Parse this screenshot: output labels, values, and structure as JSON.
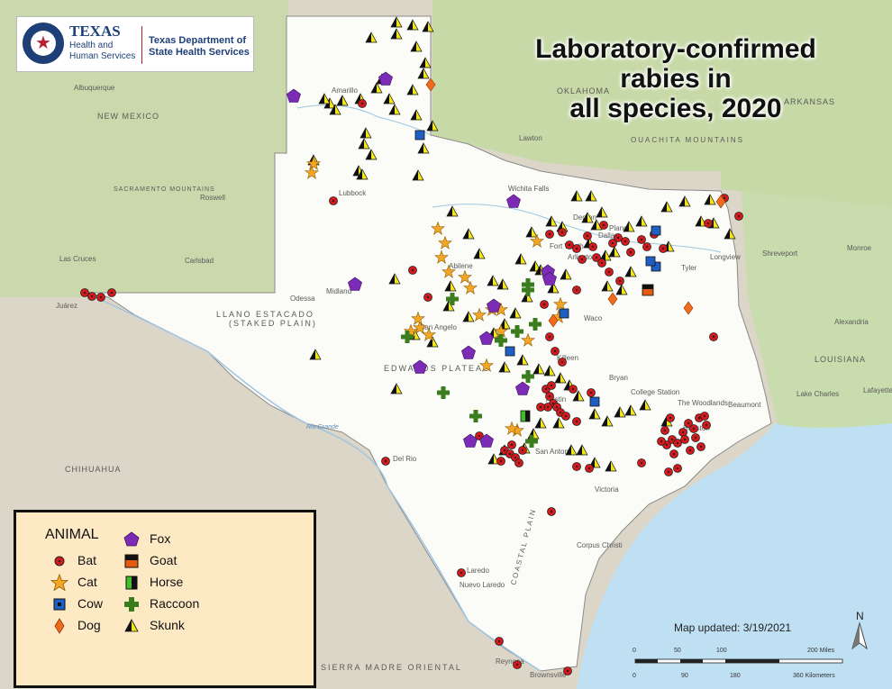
{
  "title": {
    "line1": "Laboratory-confirmed",
    "line2": "rabies in",
    "line3": "all species, 2020"
  },
  "logo": {
    "name": "TEXAS",
    "sub": "Health and Human Services",
    "dept": "Texas Department of State Health Services"
  },
  "legend": {
    "title": "ANIMAL",
    "items": [
      {
        "label": "Bat",
        "symbol": "red-dot",
        "color": "#d7191c"
      },
      {
        "label": "Cat",
        "symbol": "orange-star",
        "color": "#f5a623"
      },
      {
        "label": "Cow",
        "symbol": "blue-square",
        "color": "#1f5fc4"
      },
      {
        "label": "Dog",
        "symbol": "orange-diamond",
        "color": "#f26b1d"
      },
      {
        "label": "Fox",
        "symbol": "purple-pentagon",
        "color": "#7b2bb5"
      },
      {
        "label": "Goat",
        "symbol": "black-orange-square",
        "color": "#e25b0f"
      },
      {
        "label": "Horse",
        "symbol": "green-black-square",
        "color": "#3fbf2a"
      },
      {
        "label": "Raccoon",
        "symbol": "green-cross",
        "color": "#3a7d1d"
      },
      {
        "label": "Skunk",
        "symbol": "yellow-black-triangle",
        "color": "#f2e51d"
      }
    ]
  },
  "map_updated": "Map updated: 3/19/2021",
  "north": "N",
  "scale": {
    "miles_ticks": [
      "0",
      "50",
      "100",
      "200 Miles"
    ],
    "km_ticks": [
      "0",
      "90",
      "180",
      "360 Kilometers"
    ]
  },
  "places": {
    "amarillo": "Amarillo",
    "lubbock": "Lubbock",
    "midland": "Midland",
    "odessa": "Odessa",
    "abilene": "Abilene",
    "wichita": "Wichita Falls",
    "dallas": "Dallas",
    "fortworth": "Fort Worth",
    "arlington": "Arlington",
    "plano": "Plano",
    "denton": "Denton",
    "waco": "Waco",
    "killeen": "Killeen",
    "austin": "Austin",
    "sanantonio": "San Antonio",
    "houston": "Houston",
    "beaumont": "Beaumont",
    "corpus": "Corpus Christi",
    "laredo": "Laredo",
    "brownsville": "Brownsville",
    "elpaso": "El Paso",
    "tyler": "Tyler",
    "longview": "Longview",
    "victoria": "Victoria",
    "bryan": "Bryan",
    "collegestation": "College Station",
    "woodlands": "The Woodlands",
    "shreveport": "Shreveport",
    "lakecharles": "Lake Charles",
    "lafayette": "Lafayette",
    "alexandria": "Alexandria",
    "monroe": "Monroe",
    "oklahoma": "OKLAHOMA",
    "newmexico": "NEW MEXICO",
    "arkansas": "ARKANSAS",
    "louisiana": "LOUISIANA",
    "chihuahua": "CHIHUAHUA",
    "llano": "LLANO ESTACADO",
    "staked": "(STAKED PLAIN)",
    "edwards": "EDWARDS PLATEAU",
    "sierra": "SIERRA MADRE ORIENTAL",
    "coastal": "COASTAL PLAIN",
    "ouachita": "OUACHITA MOUNTAINS",
    "sacramento": "SACRAMENTO MOUNTAINS",
    "juarez": "Juárez",
    "nuevolaredo": "Nuevo Laredo",
    "reynosa": "Reynosa",
    "lawton": "Lawton",
    "albuquerque": "Albuquerque",
    "roswell": "Roswell",
    "carlsbad": "Carlsbad",
    "lascruces": "Las Cruces",
    "riogrande": "Rio Grande",
    "sanangelo": "San Angelo",
    "delrio": "Del Rio"
  }
}
